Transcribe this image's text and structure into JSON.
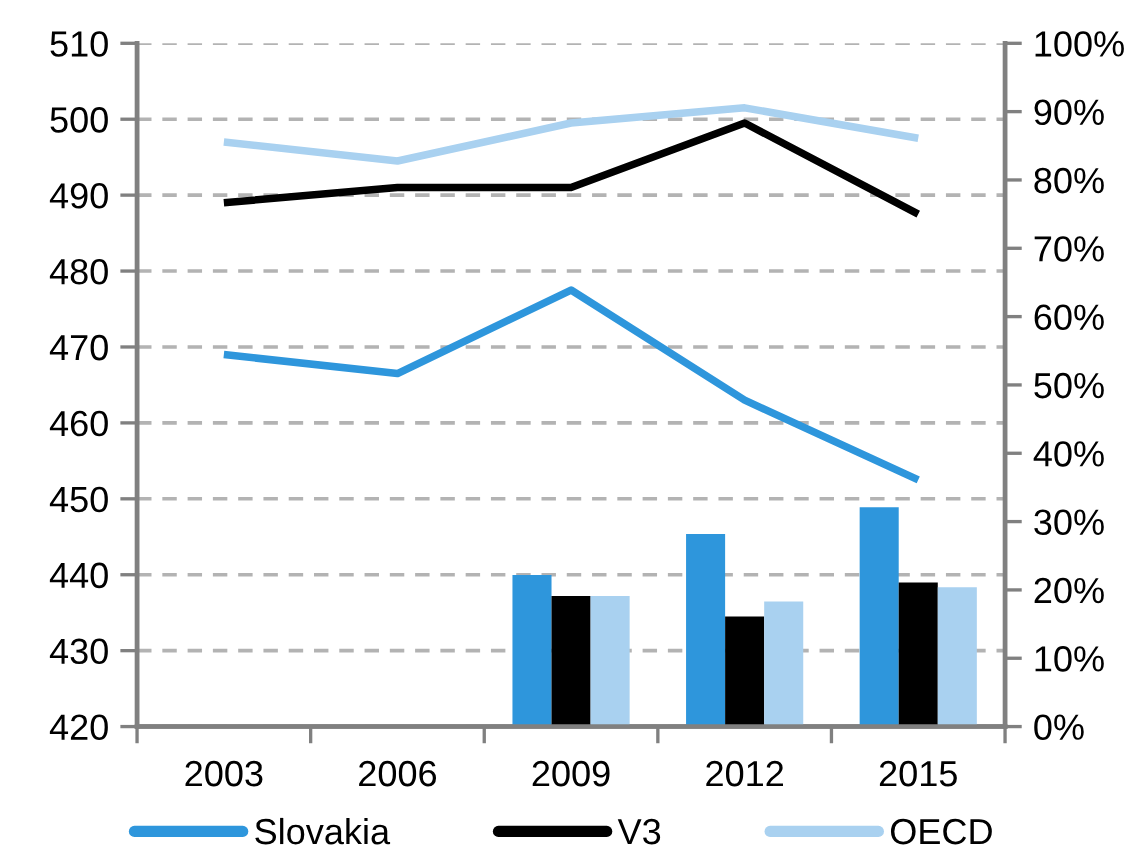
{
  "chart_data": {
    "type": "line",
    "categories": [
      "2003",
      "2006",
      "2009",
      "2012",
      "2015"
    ],
    "series": [
      {
        "name": "Slovakia",
        "color": "#2e96dc",
        "values": [
          469,
          466.5,
          477.5,
          463,
          452.5
        ]
      },
      {
        "name": "V3",
        "color": "#000000",
        "values": [
          489,
          491,
          491,
          499.5,
          487.5
        ]
      },
      {
        "name": "OECD",
        "color": "#a9d1f0",
        "values": [
          497,
          494.5,
          499.5,
          501.5,
          497.5
        ]
      },
      {
        "type": "bar",
        "axis": "y2",
        "color": "#2e96dc",
        "values": [
          null,
          null,
          22.2,
          28.2,
          32.1
        ]
      },
      {
        "type": "bar",
        "axis": "y2",
        "color": "#000000",
        "values": [
          null,
          null,
          19.1,
          16.1,
          21.1
        ]
      },
      {
        "type": "bar",
        "axis": "y2",
        "color": "#a9d1f0",
        "values": [
          null,
          null,
          19.1,
          18.3,
          20.4
        ]
      }
    ],
    "ylim": [
      420,
      510
    ],
    "yticks": [
      420,
      430,
      440,
      450,
      460,
      470,
      480,
      490,
      500,
      510
    ],
    "y2lim": [
      0,
      100
    ],
    "y2ticks": [
      {
        "value": 0,
        "label": "0%"
      },
      {
        "value": 10,
        "label": "10%"
      },
      {
        "value": 20,
        "label": "20%"
      },
      {
        "value": 30,
        "label": "30%"
      },
      {
        "value": 40,
        "label": "40%"
      },
      {
        "value": 50,
        "label": "50%"
      },
      {
        "value": 60,
        "label": "60%"
      },
      {
        "value": 70,
        "label": "70%"
      },
      {
        "value": 80,
        "label": "80%"
      },
      {
        "value": 90,
        "label": "90%"
      },
      {
        "value": 100,
        "label": "100%"
      }
    ],
    "grid": "y",
    "legend": "bottom",
    "line_style": "solid"
  }
}
